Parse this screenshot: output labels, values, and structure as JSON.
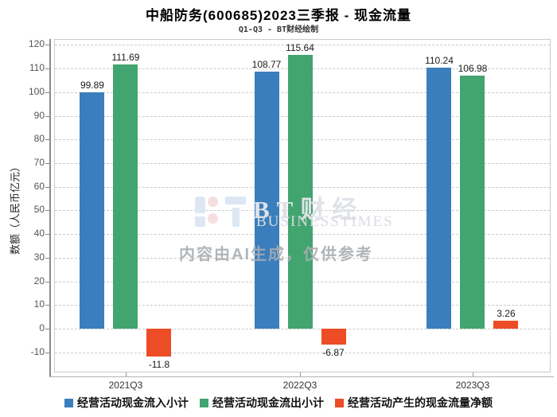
{
  "header": {
    "title": "中船防务(600685)2023三季报 - 现金流量",
    "subtitle": "Q1-Q3 - BT财经绘制"
  },
  "watermark": {
    "brand_cn": "BT财经",
    "brand_en": "BUSINESSTIMES",
    "disclaimer": "内容由AI生成，仅供参考"
  },
  "chart_data": {
    "type": "bar",
    "title": "中船防务(600685)2023三季报 - 现金流量",
    "subtitle": "Q1-Q3 - BT财经绘制",
    "categories": [
      "2021Q3",
      "2022Q3",
      "2023Q3"
    ],
    "series": [
      {
        "name": "经营活动现金流入小计",
        "color": "#3a7ebd",
        "values": [
          99.89,
          108.77,
          110.24
        ]
      },
      {
        "name": "经营活动现金流出小计",
        "color": "#42a46f",
        "values": [
          111.69,
          115.64,
          106.98
        ]
      },
      {
        "name": "经营活动产生的现金流量净额",
        "color": "#ec4d26",
        "values": [
          -11.8,
          -6.87,
          3.26
        ]
      }
    ],
    "xlabel": "",
    "ylabel": "数额（人民币亿元）",
    "ylim": [
      -18.5,
      122.5
    ],
    "yticks": [
      -10,
      0,
      10,
      20,
      30,
      40,
      50,
      60,
      70,
      80,
      90,
      100,
      110,
      120
    ],
    "grid": true,
    "gridline_style": "dashed",
    "legend_position": "bottom"
  }
}
